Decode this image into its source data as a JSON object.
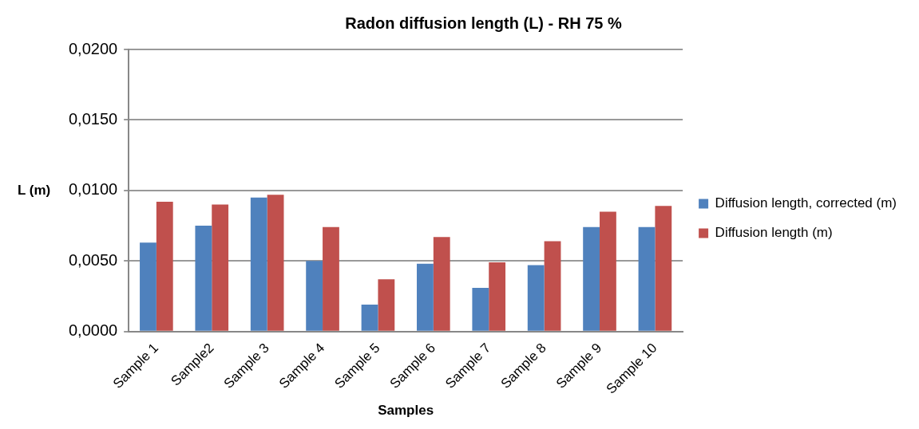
{
  "chart_data": {
    "type": "bar",
    "title": "Radon diffusion length (L) - RH 75 %",
    "xlabel": "Samples",
    "ylabel": "L (m)",
    "categories": [
      "Sample 1",
      "Sample2",
      "Sample 3",
      "Sample 4",
      "Sample 5",
      "Sample 6",
      "Sample 7",
      "Sample 8",
      "Sample 9",
      "Sample 10"
    ],
    "series": [
      {
        "name": "Diffusion length, corrected (m)",
        "color": "#4f81bd",
        "values": [
          0.0063,
          0.0075,
          0.0095,
          0.005,
          0.0019,
          0.0048,
          0.0031,
          0.0047,
          0.0074,
          0.0074
        ]
      },
      {
        "name": "Diffusion length (m)",
        "color": "#c0504d",
        "values": [
          0.0092,
          0.009,
          0.0097,
          0.0074,
          0.0037,
          0.0067,
          0.0049,
          0.0064,
          0.0085,
          0.0089
        ]
      }
    ],
    "ylim": [
      0,
      0.02
    ],
    "yticks": [
      {
        "value": 0,
        "label": "0,0000"
      },
      {
        "value": 0.005,
        "label": "0,0050"
      },
      {
        "value": 0.01,
        "label": "0,0100"
      },
      {
        "value": 0.015,
        "label": "0,0150"
      },
      {
        "value": 0.02,
        "label": "0,0200"
      }
    ],
    "grid": "y",
    "legend": "right"
  }
}
